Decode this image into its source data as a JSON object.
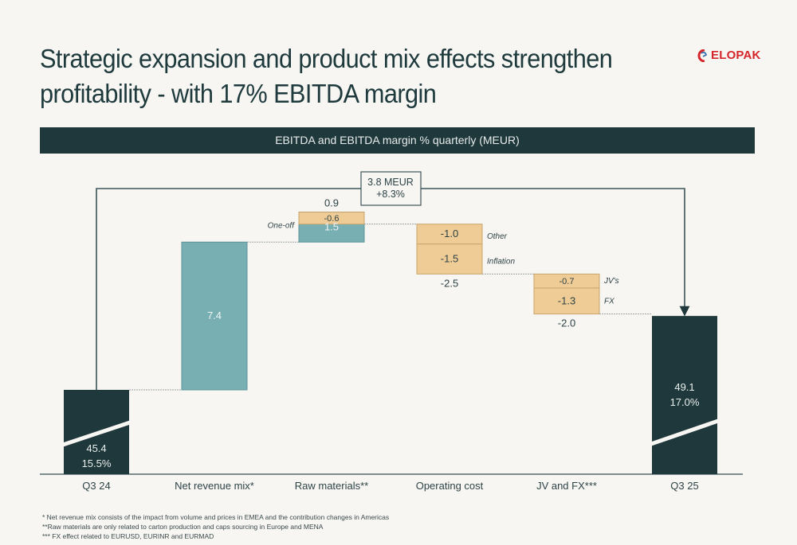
{
  "title_lines": [
    "Strategic expansion and product mix effects strengthen",
    "profitability - with 17% EBITDA margin"
  ],
  "logo": {
    "text": "ELOPAK",
    "icon": "elopak-logo-icon"
  },
  "banner": "EBITDA and EBITDA margin % quarterly (MEUR)",
  "colors": {
    "dark": "#1f383b",
    "teal": "#78afb3",
    "orange": "#efcb95",
    "background": "#f7f6f3",
    "logo_red": "#d4262b"
  },
  "chart_data": {
    "type": "waterfall",
    "title": "EBITDA and EBITDA margin % quarterly (MEUR)",
    "categories": [
      "Q3 24",
      "Net revenue mix*",
      "Raw materials**",
      "Operating cost",
      "JV and FX***",
      "Q3 25"
    ],
    "start": {
      "category": "Q3 24",
      "value": 45.4,
      "label": "45.4",
      "margin_label": "15.5%"
    },
    "end": {
      "category": "Q3 25",
      "value": 49.1,
      "label": "49.1",
      "margin_label": "17.0%"
    },
    "steps": [
      {
        "category": "Net revenue mix*",
        "total": 7.4,
        "total_label": "",
        "segments": [
          {
            "value": 7.4,
            "label": "7.4",
            "tag": ""
          }
        ]
      },
      {
        "category": "Raw materials**",
        "total": 0.9,
        "total_label": "0.9",
        "segments": [
          {
            "value": 1.5,
            "label": "1.5",
            "tag": "One-off"
          },
          {
            "value": -0.6,
            "label": "-0.6",
            "tag": ""
          }
        ]
      },
      {
        "category": "Operating cost",
        "total": -2.5,
        "total_label": "-2.5",
        "segments": [
          {
            "value": -1.0,
            "label": "-1.0",
            "tag": "Other"
          },
          {
            "value": -1.5,
            "label": "-1.5",
            "tag": "Inflation"
          }
        ]
      },
      {
        "category": "JV and FX***",
        "total": -2.0,
        "total_label": "-2.0",
        "segments": [
          {
            "value": -0.7,
            "label": "-0.7",
            "tag": "JV's"
          },
          {
            "value": -1.3,
            "label": "-1.3",
            "tag": "FX"
          }
        ]
      }
    ],
    "change_annotation": {
      "line1": "3.8 MEUR",
      "line2": "+8.3%"
    },
    "axis_break": true,
    "ylabel": "",
    "xlabel": "",
    "grid": false
  },
  "footnotes": [
    "* Net revenue mix consists of the impact from volume and prices in EMEA and the contribution changes in Americas",
    "**Raw materials are only related to carton production and caps sourcing in Europe and MENA",
    "*** FX effect related to EURUSD, EURINR and EURMAD"
  ]
}
